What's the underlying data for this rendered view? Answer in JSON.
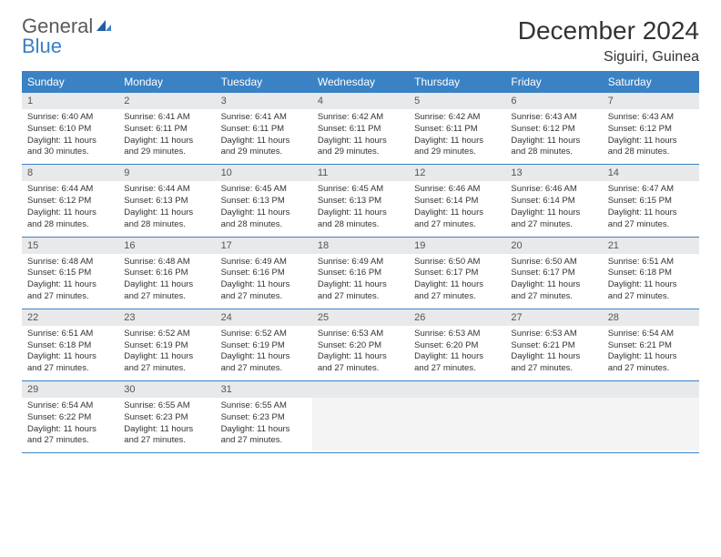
{
  "logo": {
    "word1": "General",
    "word2": "Blue"
  },
  "title": "December 2024",
  "location": "Siguiri, Guinea",
  "colors": {
    "header_bg": "#3a82c4",
    "header_text": "#ffffff",
    "daynum_bg": "#e8e9ea",
    "row_border": "#3a82c4",
    "logo_gray": "#5a5a5a",
    "logo_blue": "#3a7fc4"
  },
  "weekdays": [
    "Sunday",
    "Monday",
    "Tuesday",
    "Wednesday",
    "Thursday",
    "Friday",
    "Saturday"
  ],
  "weeks": [
    [
      {
        "n": "1",
        "sr": "6:40 AM",
        "ss": "6:10 PM",
        "dl": "11 hours and 30 minutes."
      },
      {
        "n": "2",
        "sr": "6:41 AM",
        "ss": "6:11 PM",
        "dl": "11 hours and 29 minutes."
      },
      {
        "n": "3",
        "sr": "6:41 AM",
        "ss": "6:11 PM",
        "dl": "11 hours and 29 minutes."
      },
      {
        "n": "4",
        "sr": "6:42 AM",
        "ss": "6:11 PM",
        "dl": "11 hours and 29 minutes."
      },
      {
        "n": "5",
        "sr": "6:42 AM",
        "ss": "6:11 PM",
        "dl": "11 hours and 29 minutes."
      },
      {
        "n": "6",
        "sr": "6:43 AM",
        "ss": "6:12 PM",
        "dl": "11 hours and 28 minutes."
      },
      {
        "n": "7",
        "sr": "6:43 AM",
        "ss": "6:12 PM",
        "dl": "11 hours and 28 minutes."
      }
    ],
    [
      {
        "n": "8",
        "sr": "6:44 AM",
        "ss": "6:12 PM",
        "dl": "11 hours and 28 minutes."
      },
      {
        "n": "9",
        "sr": "6:44 AM",
        "ss": "6:13 PM",
        "dl": "11 hours and 28 minutes."
      },
      {
        "n": "10",
        "sr": "6:45 AM",
        "ss": "6:13 PM",
        "dl": "11 hours and 28 minutes."
      },
      {
        "n": "11",
        "sr": "6:45 AM",
        "ss": "6:13 PM",
        "dl": "11 hours and 28 minutes."
      },
      {
        "n": "12",
        "sr": "6:46 AM",
        "ss": "6:14 PM",
        "dl": "11 hours and 27 minutes."
      },
      {
        "n": "13",
        "sr": "6:46 AM",
        "ss": "6:14 PM",
        "dl": "11 hours and 27 minutes."
      },
      {
        "n": "14",
        "sr": "6:47 AM",
        "ss": "6:15 PM",
        "dl": "11 hours and 27 minutes."
      }
    ],
    [
      {
        "n": "15",
        "sr": "6:48 AM",
        "ss": "6:15 PM",
        "dl": "11 hours and 27 minutes."
      },
      {
        "n": "16",
        "sr": "6:48 AM",
        "ss": "6:16 PM",
        "dl": "11 hours and 27 minutes."
      },
      {
        "n": "17",
        "sr": "6:49 AM",
        "ss": "6:16 PM",
        "dl": "11 hours and 27 minutes."
      },
      {
        "n": "18",
        "sr": "6:49 AM",
        "ss": "6:16 PM",
        "dl": "11 hours and 27 minutes."
      },
      {
        "n": "19",
        "sr": "6:50 AM",
        "ss": "6:17 PM",
        "dl": "11 hours and 27 minutes."
      },
      {
        "n": "20",
        "sr": "6:50 AM",
        "ss": "6:17 PM",
        "dl": "11 hours and 27 minutes."
      },
      {
        "n": "21",
        "sr": "6:51 AM",
        "ss": "6:18 PM",
        "dl": "11 hours and 27 minutes."
      }
    ],
    [
      {
        "n": "22",
        "sr": "6:51 AM",
        "ss": "6:18 PM",
        "dl": "11 hours and 27 minutes."
      },
      {
        "n": "23",
        "sr": "6:52 AM",
        "ss": "6:19 PM",
        "dl": "11 hours and 27 minutes."
      },
      {
        "n": "24",
        "sr": "6:52 AM",
        "ss": "6:19 PM",
        "dl": "11 hours and 27 minutes."
      },
      {
        "n": "25",
        "sr": "6:53 AM",
        "ss": "6:20 PM",
        "dl": "11 hours and 27 minutes."
      },
      {
        "n": "26",
        "sr": "6:53 AM",
        "ss": "6:20 PM",
        "dl": "11 hours and 27 minutes."
      },
      {
        "n": "27",
        "sr": "6:53 AM",
        "ss": "6:21 PM",
        "dl": "11 hours and 27 minutes."
      },
      {
        "n": "28",
        "sr": "6:54 AM",
        "ss": "6:21 PM",
        "dl": "11 hours and 27 minutes."
      }
    ],
    [
      {
        "n": "29",
        "sr": "6:54 AM",
        "ss": "6:22 PM",
        "dl": "11 hours and 27 minutes."
      },
      {
        "n": "30",
        "sr": "6:55 AM",
        "ss": "6:23 PM",
        "dl": "11 hours and 27 minutes."
      },
      {
        "n": "31",
        "sr": "6:55 AM",
        "ss": "6:23 PM",
        "dl": "11 hours and 27 minutes."
      },
      null,
      null,
      null,
      null
    ]
  ],
  "labels": {
    "sunrise": "Sunrise:",
    "sunset": "Sunset:",
    "daylight": "Daylight:"
  }
}
